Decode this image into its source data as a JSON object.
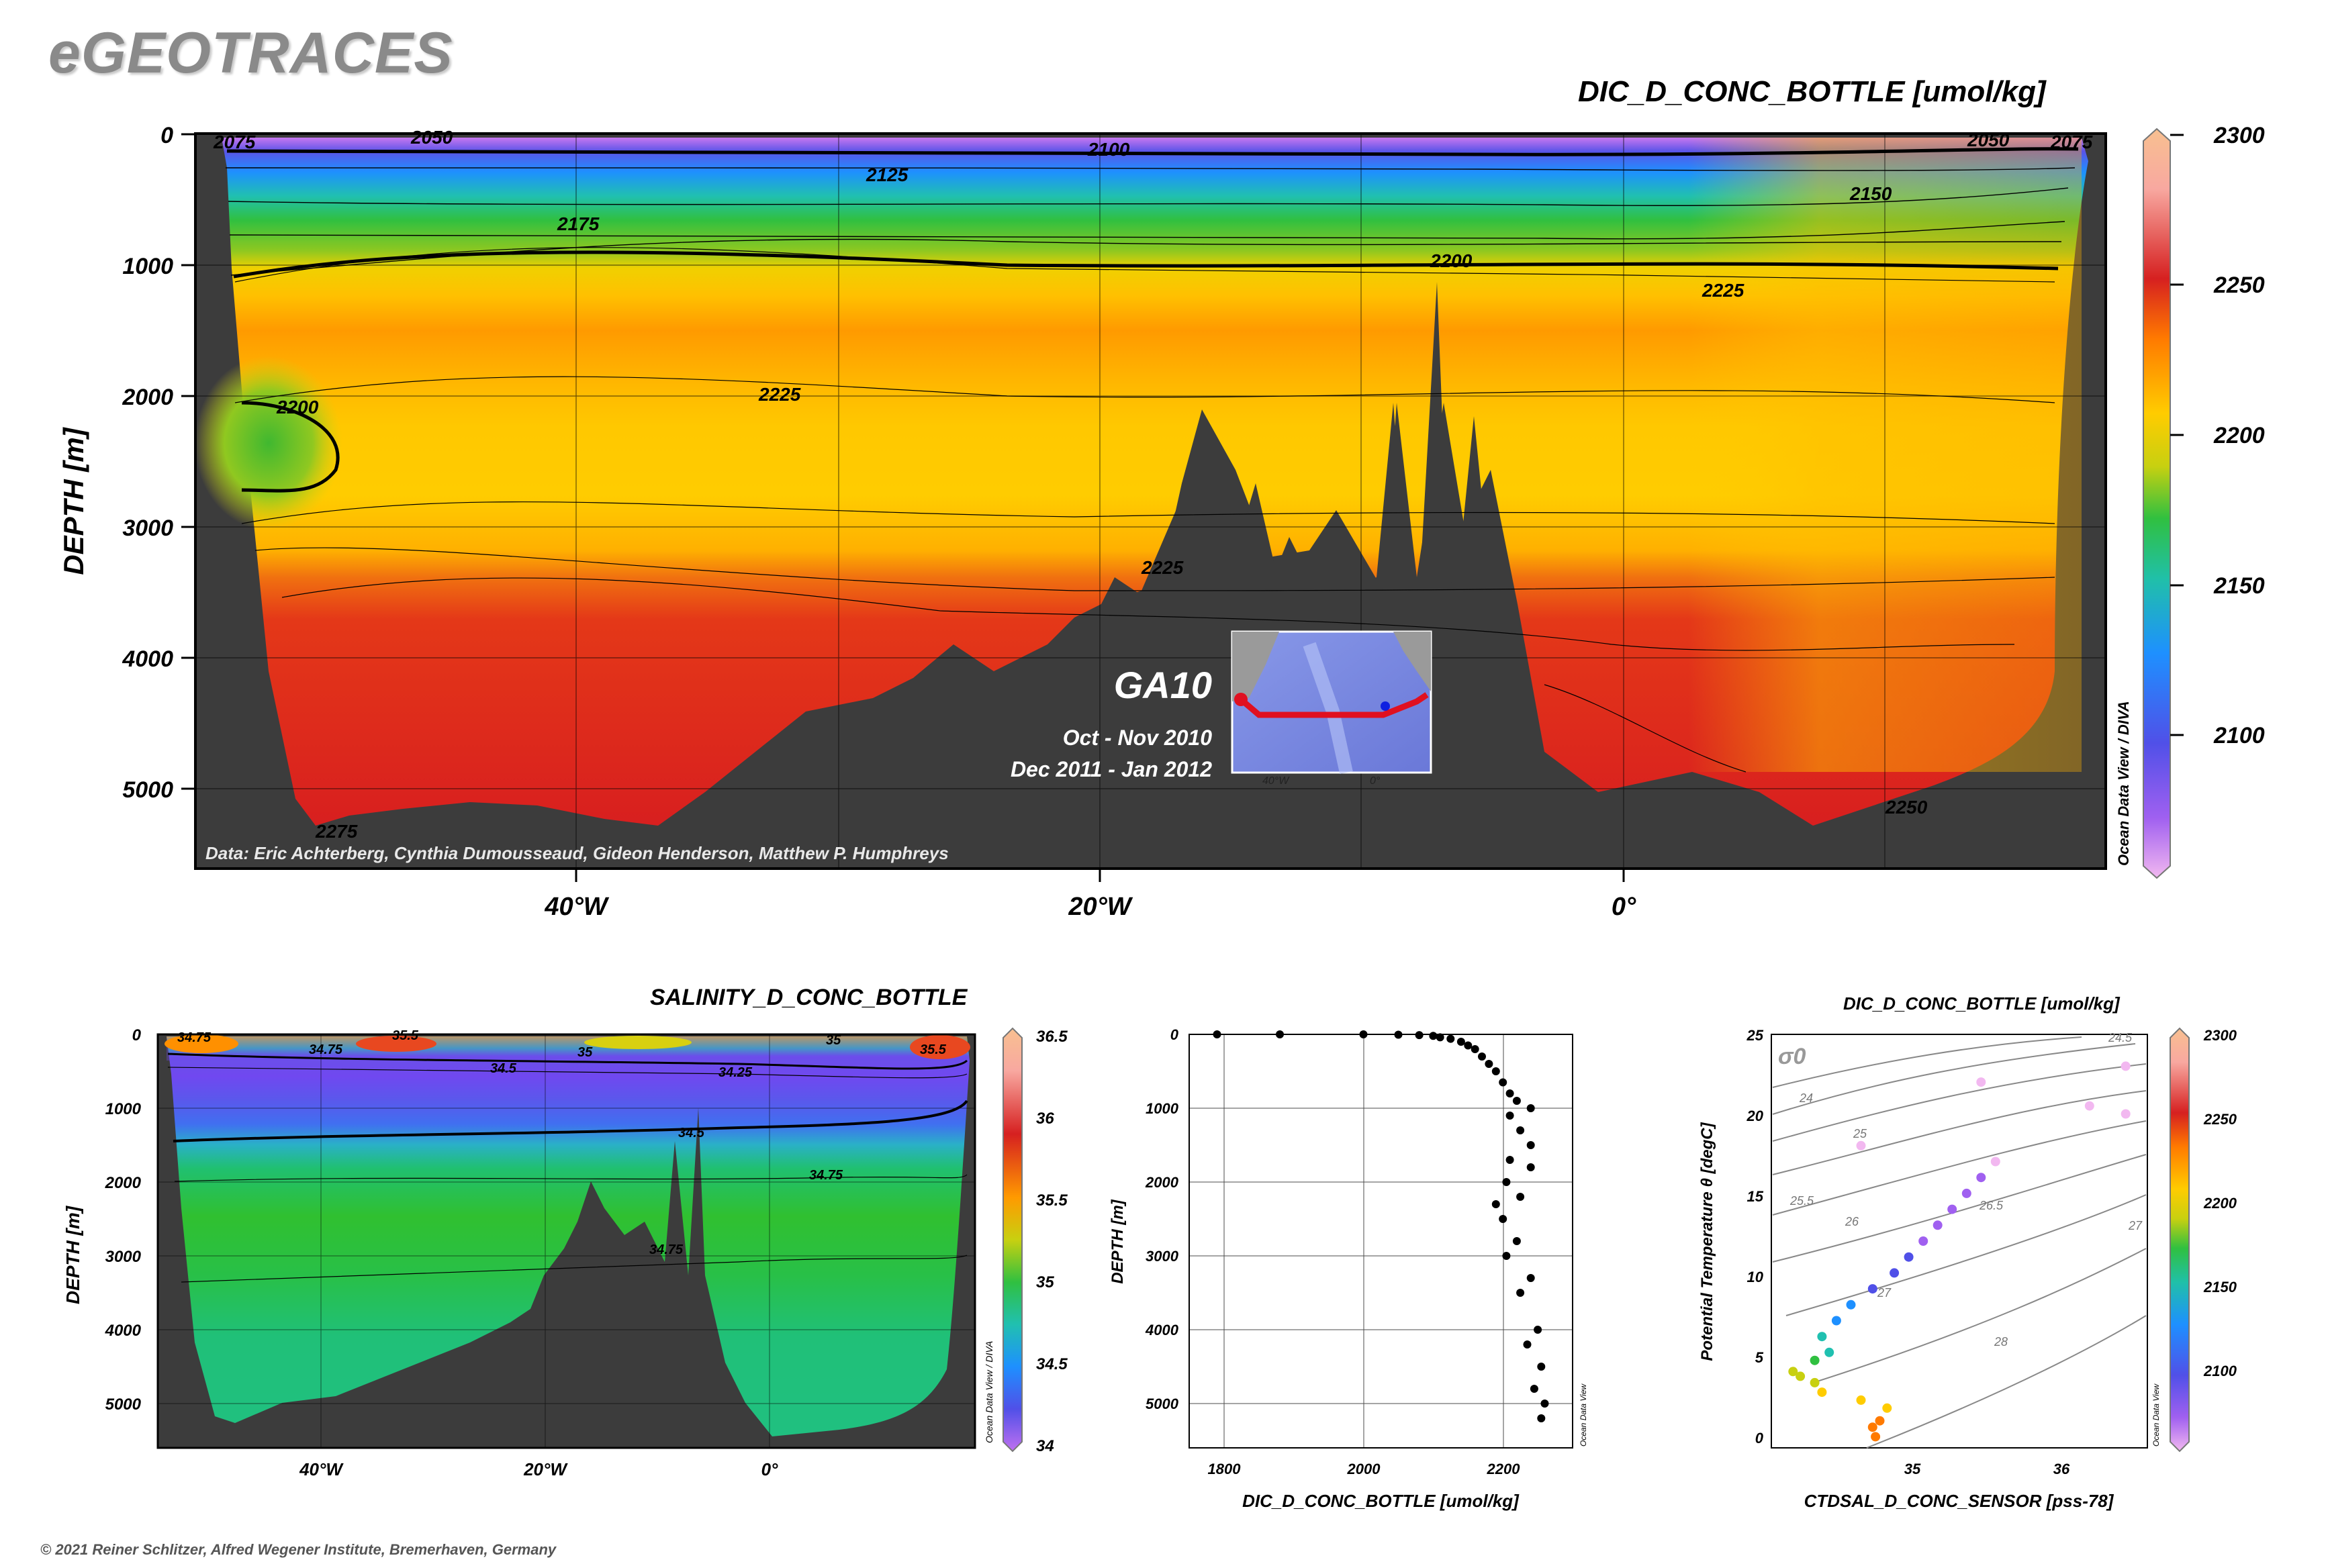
{
  "brand": "eGEOTRACES",
  "credit": "© 2021 Reiner Schlitzer, Alfred Wegener Institute, Bremerhaven, Germany",
  "main_section": {
    "title": "DIC_D_CONC_BOTTLE [umol/kg]",
    "ylabel": "DEPTH [m]",
    "yticks": [
      "0",
      "1000",
      "2000",
      "3000",
      "4000",
      "5000"
    ],
    "xticks": [
      "40°W",
      "20°W",
      "0°"
    ],
    "colorbar_ticks": [
      "2300",
      "2250",
      "2200",
      "2150",
      "2100"
    ],
    "colorbar_label": "Ocean Data View / DIVA",
    "data_credit": "Data: Eric Achterberg, Cynthia Dumousseaud, Gideon Henderson, Matthew P. Humphreys",
    "contour_labels": [
      "2075",
      "2050",
      "2100",
      "2125",
      "2150",
      "2175",
      "2200",
      "2225",
      "2225",
      "2200",
      "2275",
      "2225",
      "2250",
      "2075",
      "2050"
    ],
    "inset": {
      "section_name": "GA10",
      "cruise_1": "Oct - Nov 2010",
      "cruise_2": "Dec 2011 - Jan 2012",
      "tick_1": "40°W",
      "tick_2": "0°"
    }
  },
  "salinity_section": {
    "title": "SALINITY_D_CONC_BOTTLE",
    "ylabel": "DEPTH [m]",
    "yticks": [
      "0",
      "1000",
      "2000",
      "3000",
      "4000",
      "5000"
    ],
    "xticks": [
      "40°W",
      "20°W",
      "0°"
    ],
    "colorbar_ticks": [
      "36.5",
      "36",
      "35.5",
      "35",
      "34.5",
      "34"
    ],
    "colorbar_label": "Ocean Data View / DIVA",
    "contour_labels": [
      "34.75",
      "35.5",
      "35",
      "34.5",
      "34.25",
      "35.5",
      "35",
      "34.75",
      "34.5",
      "34.75",
      "34.75"
    ]
  },
  "profile": {
    "xlabel": "DIC_D_CONC_BOTTLE [umol/kg]",
    "ylabel": "DEPTH [m]",
    "xticks": [
      "1800",
      "2000",
      "2200"
    ],
    "yticks": [
      "0",
      "1000",
      "2000",
      "3000",
      "4000",
      "5000"
    ],
    "watermark": "Ocean Data View"
  },
  "ts_plot": {
    "title": "DIC_D_CONC_BOTTLE [umol/kg]",
    "xlabel": "CTDSAL_D_CONC_SENSOR [pss-78]",
    "ylabel": "Potential Temperature θ [degC]",
    "xticks": [
      "35",
      "36"
    ],
    "yticks": [
      "0",
      "5",
      "10",
      "15",
      "20",
      "25"
    ],
    "sigma_label": "σ0",
    "isopycnal_labels": [
      "24",
      "24.5",
      "25",
      "25.5",
      "26",
      "26.5",
      "27",
      "27",
      "28"
    ],
    "colorbar_ticks": [
      "2300",
      "2250",
      "2200",
      "2150",
      "2100"
    ],
    "watermark": "Ocean Data View"
  },
  "colors": {
    "bathymetry": "#3c3c3c",
    "scale": [
      "#f2b8f0",
      "#a060f0",
      "#5050e8",
      "#1e90ff",
      "#22c0c8",
      "#1fc060",
      "#5cc020",
      "#d8d810",
      "#ffcc00",
      "#ff9000",
      "#e84820",
      "#d62020",
      "#f8a8a0",
      "#f8c090"
    ]
  },
  "chart_data": [
    {
      "type": "heatmap",
      "title": "DIC_D_CONC_BOTTLE [umol/kg]",
      "xlabel": "",
      "ylabel": "DEPTH [m]",
      "xlim": [
        -53,
        19
      ],
      "ylim": [
        5600,
        0
      ],
      "xticks": [
        -40,
        -20,
        0
      ],
      "zlim": [
        2060,
        2300
      ],
      "contour_levels": [
        2050,
        2075,
        2100,
        2125,
        2150,
        2175,
        2200,
        2225,
        2250,
        2275
      ],
      "depth_profile_dic": [
        [
          0,
          2060
        ],
        [
          50,
          2090
        ],
        [
          150,
          2110
        ],
        [
          300,
          2130
        ],
        [
          600,
          2160
        ],
        [
          800,
          2175
        ],
        [
          1100,
          2210
        ],
        [
          1500,
          2245
        ],
        [
          2000,
          2225
        ],
        [
          2500,
          2215
        ],
        [
          3000,
          2225
        ],
        [
          3500,
          2245
        ],
        [
          4500,
          2262
        ],
        [
          5500,
          2270
        ]
      ]
    },
    {
      "type": "heatmap",
      "title": "SALINITY_D_CONC_BOTTLE",
      "xlabel": "",
      "ylabel": "DEPTH [m]",
      "xlim": [
        -53,
        19
      ],
      "ylim": [
        5600,
        0
      ],
      "xticks": [
        -40,
        -20,
        0
      ],
      "zlim": [
        34,
        36.5
      ],
      "contour_levels": [
        34.25,
        34.5,
        34.75,
        35,
        35.5
      ],
      "depth_profile_salinity": [
        [
          0,
          35.2
        ],
        [
          100,
          34.9
        ],
        [
          300,
          34.5
        ],
        [
          600,
          34.15
        ],
        [
          900,
          34.2
        ],
        [
          1300,
          34.4
        ],
        [
          1800,
          34.72
        ],
        [
          2500,
          34.82
        ],
        [
          3500,
          34.78
        ],
        [
          5000,
          34.72
        ]
      ]
    },
    {
      "type": "scatter",
      "xlabel": "DIC_D_CONC_BOTTLE [umol/kg]",
      "ylabel": "DEPTH [m]",
      "xlim": [
        1750,
        2300
      ],
      "ylim": [
        5600,
        0
      ],
      "xticks": [
        1800,
        2000,
        2200
      ],
      "series": [
        {
          "points": [
            [
              1790,
              0
            ],
            [
              1880,
              0
            ],
            [
              2000,
              0
            ],
            [
              2050,
              5
            ],
            [
              2080,
              10
            ],
            [
              2100,
              20
            ],
            [
              2110,
              40
            ],
            [
              2125,
              60
            ],
            [
              2140,
              100
            ],
            [
              2150,
              150
            ],
            [
              2160,
              200
            ],
            [
              2170,
              300
            ],
            [
              2180,
              400
            ],
            [
              2190,
              500
            ],
            [
              2200,
              650
            ],
            [
              2210,
              800
            ],
            [
              2220,
              900
            ],
            [
              2240,
              1000
            ],
            [
              2210,
              1100
            ],
            [
              2225,
              1300
            ],
            [
              2240,
              1500
            ],
            [
              2210,
              1700
            ],
            [
              2240,
              1800
            ],
            [
              2205,
              2000
            ],
            [
              2225,
              2200
            ],
            [
              2190,
              2300
            ],
            [
              2200,
              2500
            ],
            [
              2220,
              2800
            ],
            [
              2205,
              3000
            ],
            [
              2240,
              3300
            ],
            [
              2225,
              3500
            ],
            [
              2250,
              4000
            ],
            [
              2235,
              4200
            ],
            [
              2255,
              4500
            ],
            [
              2245,
              4800
            ],
            [
              2260,
              5000
            ],
            [
              2255,
              5200
            ]
          ]
        }
      ]
    },
    {
      "type": "scatter",
      "xlabel": "CTDSAL_D_CONC_SENSOR [pss-78]",
      "ylabel": "Potential Temperature θ [degC]",
      "xlim": [
        34.0,
        36.6
      ],
      "ylim": [
        -0.5,
        25.5
      ],
      "xticks": [
        35,
        36
      ],
      "yticks": [
        0,
        5,
        10,
        15,
        20,
        25
      ],
      "color_variable": "DIC_D_CONC_BOTTLE [umol/kg]",
      "colorbar_range": [
        2060,
        2300
      ],
      "series": [
        {
          "points": [
            [
              34.72,
              0.2,
              2255
            ],
            [
              34.7,
              0.8,
              2258
            ],
            [
              34.75,
              1.2,
              2252
            ],
            [
              34.8,
              2.0,
              2245
            ],
            [
              34.62,
              2.5,
              2240
            ],
            [
              34.35,
              3.0,
              2230
            ],
            [
              34.3,
              3.6,
              2220
            ],
            [
              34.2,
              4.0,
              2210
            ],
            [
              34.15,
              4.3,
              2215
            ],
            [
              34.3,
              5.0,
              2185
            ],
            [
              34.4,
              5.5,
              2160
            ],
            [
              34.35,
              6.5,
              2170
            ],
            [
              34.45,
              7.5,
              2155
            ],
            [
              34.55,
              8.5,
              2140
            ],
            [
              34.7,
              9.5,
              2130
            ],
            [
              34.85,
              10.5,
              2120
            ],
            [
              34.95,
              11.5,
              2110
            ],
            [
              35.05,
              12.5,
              2105
            ],
            [
              35.15,
              13.5,
              2100
            ],
            [
              35.25,
              14.5,
              2095
            ],
            [
              35.35,
              15.5,
              2090
            ],
            [
              35.45,
              16.5,
              2085
            ],
            [
              35.55,
              17.5,
              2080
            ],
            [
              34.62,
              18.5,
              2070
            ],
            [
              35.45,
              22.5,
              2065
            ],
            [
              36.45,
              23.5,
              2060
            ],
            [
              36.2,
              21.0,
              2070
            ],
            [
              36.45,
              20.5,
              2075
            ]
          ]
        }
      ]
    }
  ]
}
